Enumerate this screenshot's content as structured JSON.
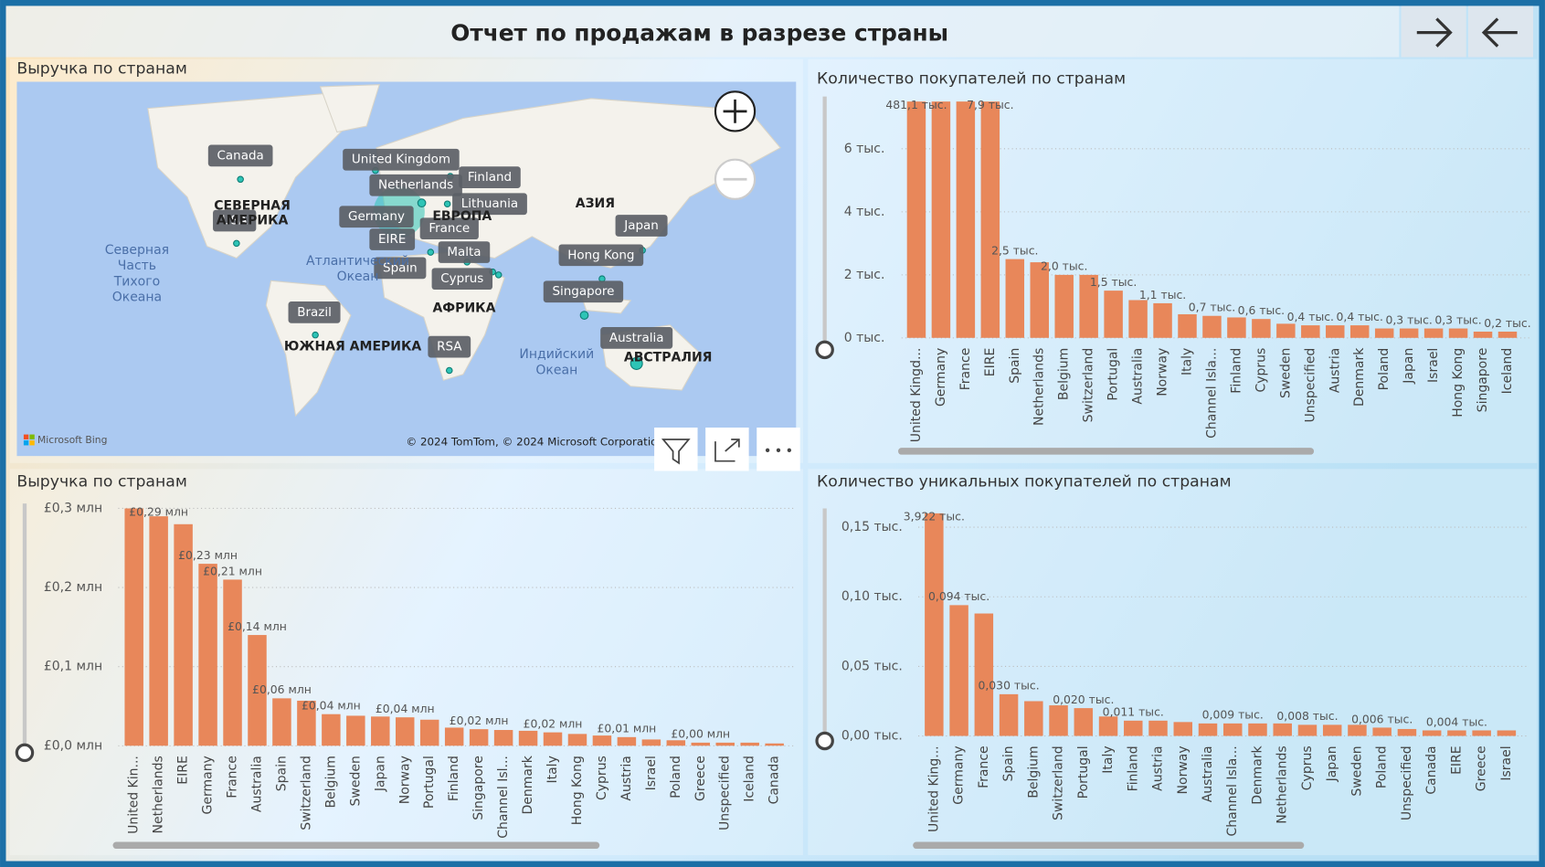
{
  "header": {
    "title": "Отчет по продажам в разрезе страны"
  },
  "map": {
    "title": "Выручка по странам",
    "labels": [
      "Canada",
      "United Kingdom",
      "Netherlands",
      "Finland",
      "Germany",
      "Lithuania",
      "France",
      "EIRE",
      "Malta",
      "Spain",
      "Cyprus",
      "Japan",
      "Hong Kong",
      "Singapore",
      "Brazil",
      "Australia",
      "RSA",
      "USA"
    ],
    "regions": [
      [
        "СЕВЕРНАЯ",
        "АМЕРИКА"
      ],
      [
        "ЕВРОПА"
      ],
      [
        "АЗИЯ"
      ],
      [
        "АФРИКА"
      ],
      [
        "ЮЖНАЯ АМЕРИКА"
      ],
      [
        "АВСТРАЛИЯ"
      ]
    ],
    "oceans": [
      [
        "Северная",
        "Часть",
        "Тихого",
        "Океана"
      ],
      [
        "Атлантический",
        "Океан"
      ],
      [
        "Индийский",
        "Океан"
      ]
    ],
    "attribution": "Microsoft Bing",
    "copyright": "© 2024 TomTom, © 2024 Microsoft Corporation, ©"
  },
  "chart_data": [
    {
      "type": "bar",
      "title": "Количество покупателей по странам",
      "color": "#e8875a",
      "grid": true,
      "categories": [
        "United Kingd...",
        "Germany",
        "France",
        "EIRE",
        "Spain",
        "Netherlands",
        "Belgium",
        "Switzerland",
        "Portugal",
        "Australia",
        "Norway",
        "Italy",
        "Channel Isla...",
        "Finland",
        "Cyprus",
        "Sweden",
        "Unspecified",
        "Austria",
        "Denmark",
        "Poland",
        "Japan",
        "Israel",
        "Hong Kong",
        "Singapore",
        "Iceland"
      ],
      "values": [
        481.1,
        8.5,
        8.1,
        7.9,
        2.5,
        2.4,
        2.0,
        2.0,
        1.5,
        1.2,
        1.1,
        0.75,
        0.7,
        0.65,
        0.6,
        0.45,
        0.4,
        0.4,
        0.4,
        0.3,
        0.3,
        0.3,
        0.3,
        0.2,
        0.2
      ],
      "value_labels": [
        "481,1 тыс.",
        null,
        null,
        "7,9 тыс.",
        "2,5 тыс.",
        null,
        "2,0 тыс.",
        null,
        "1,5 тыс.",
        null,
        "1,1 тыс.",
        null,
        "0,7 тыс.",
        null,
        "0,6 тыс.",
        null,
        "0,4 тыс.",
        null,
        "0,4 тыс.",
        null,
        "0,3 тыс.",
        null,
        "0,3 тыс.",
        null,
        "0,2 тыс."
      ],
      "ylim": [
        0,
        7.5
      ],
      "yticks": [
        {
          "value": 0,
          "label": "0 тыс."
        },
        {
          "value": 2,
          "label": "2 тыс."
        },
        {
          "value": 4,
          "label": "4 тыс."
        },
        {
          "value": 6,
          "label": "6 тыс."
        }
      ]
    },
    {
      "type": "bar",
      "title": "Выручка по странам",
      "color": "#e8875a",
      "grid": true,
      "categories": [
        "United Kin...",
        "Netherlands",
        "EIRE",
        "Germany",
        "France",
        "Australia",
        "Spain",
        "Switzerland",
        "Belgium",
        "Sweden",
        "Japan",
        "Norway",
        "Portugal",
        "Finland",
        "Singapore",
        "Channel Isl...",
        "Denmark",
        "Italy",
        "Hong Kong",
        "Cyprus",
        "Austria",
        "Israel",
        "Poland",
        "Greece",
        "Unspecified",
        "Iceland",
        "Canada"
      ],
      "values": [
        0.3,
        0.29,
        0.28,
        0.23,
        0.21,
        0.14,
        0.06,
        0.057,
        0.04,
        0.038,
        0.037,
        0.036,
        0.033,
        0.023,
        0.021,
        0.02,
        0.019,
        0.017,
        0.015,
        0.013,
        0.011,
        0.008,
        0.007,
        0.004,
        0.004,
        0.004,
        0.003
      ],
      "value_labels": [
        null,
        "£0,29 млн",
        null,
        "£0,23 млн",
        "£0,21 млн",
        "£0,14 млн",
        "£0,06 млн",
        null,
        "£0,04 млн",
        null,
        null,
        "£0,04 млн",
        null,
        null,
        "£0,02 млн",
        null,
        null,
        "£0,02 млн",
        null,
        null,
        "£0,01 млн",
        null,
        null,
        "£0,00 млн",
        null,
        null,
        null
      ],
      "ylim": [
        0,
        0.3
      ],
      "yticks": [
        {
          "value": 0,
          "label": "£0,0 млн"
        },
        {
          "value": 0.1,
          "label": "£0,1 млн"
        },
        {
          "value": 0.2,
          "label": "£0,2 млн"
        },
        {
          "value": 0.3,
          "label": "£0,3 млн"
        }
      ]
    },
    {
      "type": "bar",
      "title": "Количество уникальных покупателей по странам",
      "color": "#e8875a",
      "grid": true,
      "categories": [
        "United King...",
        "Germany",
        "France",
        "Spain",
        "Belgium",
        "Switzerland",
        "Portugal",
        "Italy",
        "Finland",
        "Austria",
        "Norway",
        "Australia",
        "Channel Isla...",
        "Denmark",
        "Netherlands",
        "Cyprus",
        "Japan",
        "Sweden",
        "Poland",
        "Unspecified",
        "Canada",
        "EIRE",
        "Greece",
        "Israel"
      ],
      "values": [
        3.922,
        0.094,
        0.088,
        0.03,
        0.025,
        0.022,
        0.02,
        0.014,
        0.011,
        0.011,
        0.01,
        0.009,
        0.009,
        0.009,
        0.009,
        0.008,
        0.008,
        0.008,
        0.006,
        0.005,
        0.004,
        0.004,
        0.004,
        0.004
      ],
      "value_labels": [
        "3,922 тыс.",
        "0,094 тыс.",
        null,
        "0,030 тыс.",
        null,
        null,
        "0,020 тыс.",
        null,
        "0,011 тыс.",
        null,
        null,
        null,
        "0,009 тыс.",
        null,
        null,
        "0,008 тыс.",
        null,
        null,
        "0,006 тыс.",
        null,
        null,
        "0,004 тыс.",
        null,
        null
      ],
      "ylim": [
        0,
        0.16
      ],
      "yticks": [
        {
          "value": 0,
          "label": "0,00 тыс."
        },
        {
          "value": 0.05,
          "label": "0,05 тыс."
        },
        {
          "value": 0.1,
          "label": "0,10 тыс."
        },
        {
          "value": 0.15,
          "label": "0,15 тыс."
        }
      ]
    }
  ]
}
